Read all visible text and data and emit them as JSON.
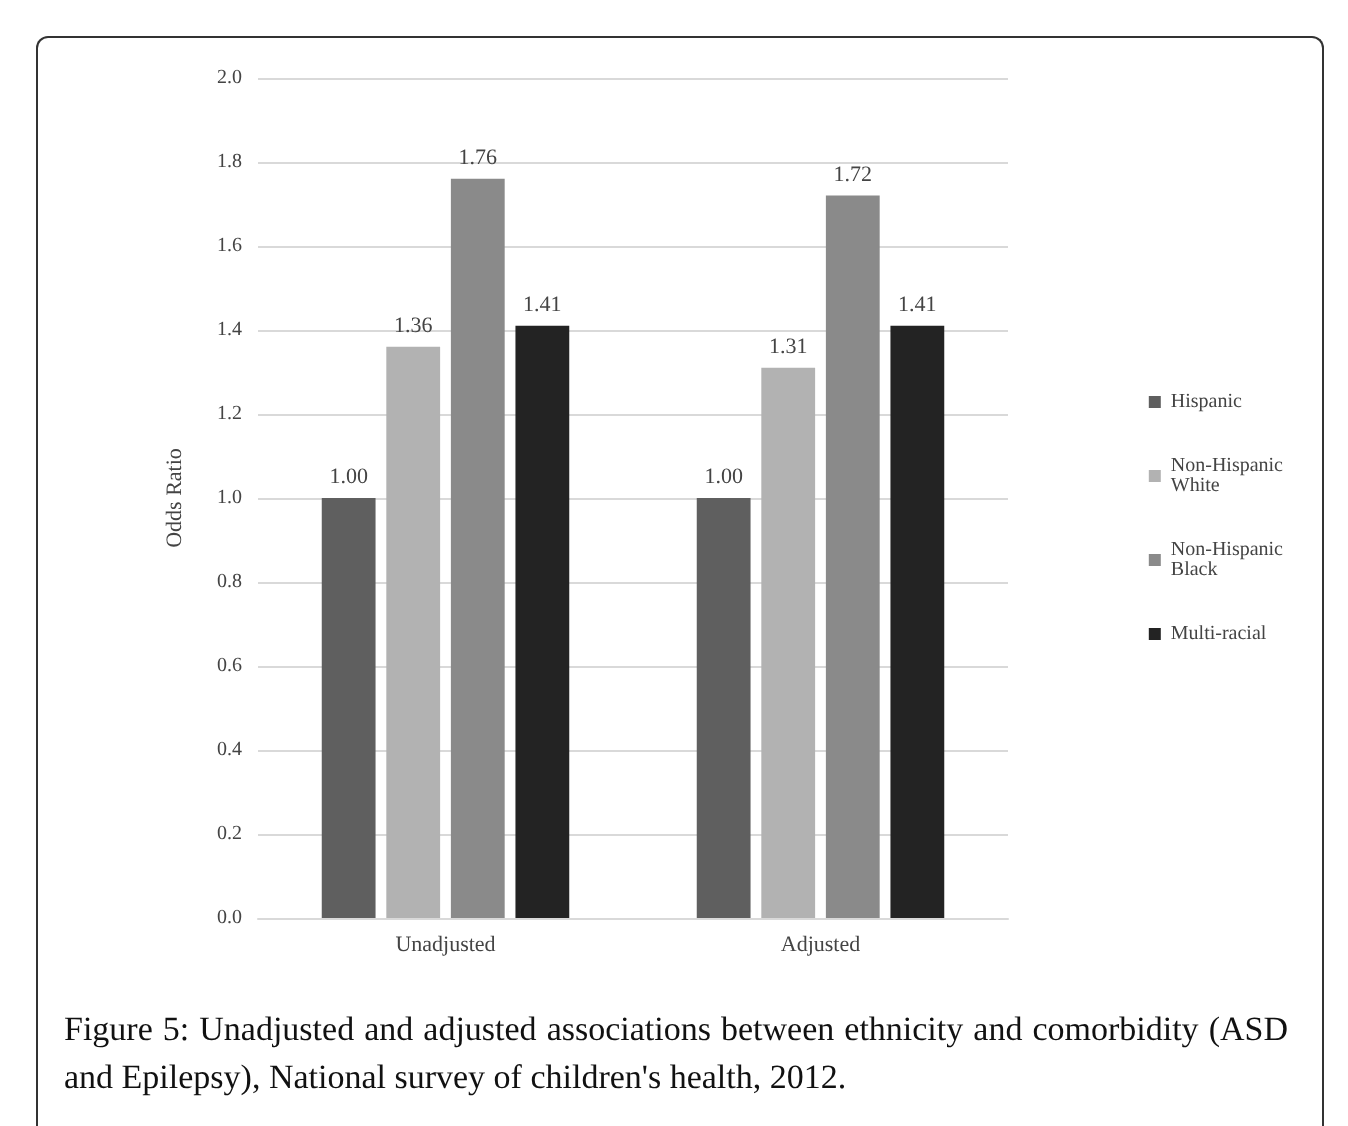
{
  "chart_data": {
    "type": "bar",
    "ylabel": "Odds Ratio",
    "categories": [
      "Unadjusted",
      "Adjusted"
    ],
    "series": [
      {
        "name": "Hispanic",
        "color": "#5f5f5f",
        "values": [
          1.0,
          1.0
        ],
        "value_labels": [
          "1.00",
          "1.00"
        ]
      },
      {
        "name": "Non-Hispanic White",
        "color": "#b2b2b2",
        "values": [
          1.36,
          1.31
        ],
        "value_labels": [
          "1.36",
          "1.31"
        ]
      },
      {
        "name": "Non-Hispanic Black",
        "color": "#8a8a8a",
        "values": [
          1.76,
          1.72
        ],
        "value_labels": [
          "1.76",
          "1.72"
        ]
      },
      {
        "name": "Multi-racial",
        "color": "#232323",
        "values": [
          1.41,
          1.41
        ],
        "value_labels": [
          "1.41",
          "1.41"
        ]
      }
    ],
    "ylim": [
      0,
      2
    ],
    "yticks": [
      "0.0",
      "0.2",
      "0.4",
      "0.6",
      "0.8",
      "1.0",
      "1.2",
      "1.4",
      "1.6",
      "1.8",
      "2.0"
    ],
    "grid": "y",
    "legend": "right",
    "annotations": [
      "Figure 5: Unadjusted and adjusted associations between ethnicity and comorbidity (ASD and Epilepsy), National survey of children's health, 2012."
    ]
  }
}
